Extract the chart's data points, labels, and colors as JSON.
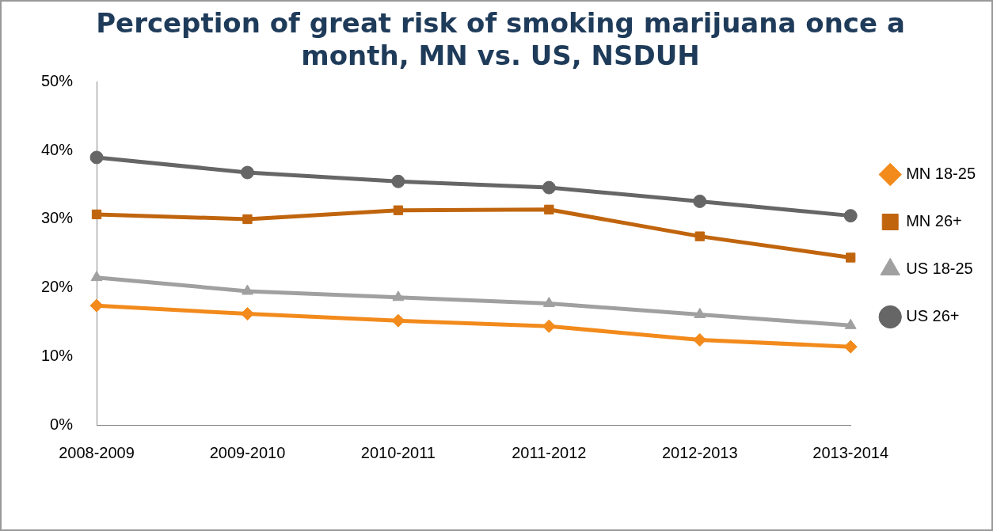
{
  "chart_data": {
    "type": "line",
    "title": "Perception of great risk of smoking marijuana once a month, MN vs. US, NSDUH",
    "categories": [
      "2008-2009",
      "2009-2010",
      "2010-2011",
      "2011-2012",
      "2012-2013",
      "2013-2014"
    ],
    "series": [
      {
        "name": "MN 18-25",
        "color": "#f28a1c",
        "marker": "diamond",
        "values": [
          17.4,
          16.2,
          15.2,
          14.4,
          12.4,
          11.4
        ]
      },
      {
        "name": "MN 26+",
        "color": "#c0650e",
        "marker": "square",
        "values": [
          30.7,
          30.0,
          31.3,
          31.4,
          27.5,
          24.4
        ]
      },
      {
        "name": "US 18-25",
        "color": "#a0a0a0",
        "marker": "triangle",
        "values": [
          21.5,
          19.5,
          18.6,
          17.7,
          16.1,
          14.5
        ]
      },
      {
        "name": "US 26+",
        "color": "#666666",
        "marker": "circle",
        "values": [
          39.0,
          36.8,
          35.5,
          34.6,
          32.6,
          30.5
        ]
      }
    ],
    "ylim": [
      0,
      50
    ],
    "yticks": [
      {
        "value": 0,
        "label": "0%"
      },
      {
        "value": 10,
        "label": "10%"
      },
      {
        "value": 20,
        "label": "20%"
      },
      {
        "value": 30,
        "label": "30%"
      },
      {
        "value": 40,
        "label": "40%"
      },
      {
        "value": 50,
        "label": "50%"
      }
    ],
    "grid": false,
    "legend": "right",
    "line_style": "solid"
  }
}
